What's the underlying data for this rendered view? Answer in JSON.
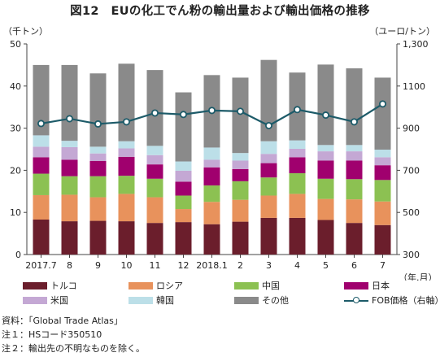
{
  "title": "図12　EUの化工でん粉の輸出量および輸出価格の推移",
  "left_unit": "（千トン）",
  "right_unit": "（ユーロ/トン）",
  "x_unit": "（年.月）",
  "notes": [
    "資料：「Global Trade Atlas」",
    "注１：HSコード350510",
    "注２：輸出先の不明なものを除く。"
  ],
  "chart_data": {
    "type": "bar",
    "stacked": true,
    "categories": [
      "2017.7",
      "8",
      "9",
      "10",
      "11",
      "12",
      "2018.1",
      "2",
      "3",
      "4",
      "5",
      "6",
      "7"
    ],
    "ylim": [
      0,
      50
    ],
    "yticks": [
      0,
      10,
      20,
      30,
      40,
      50
    ],
    "y2lim": [
      300,
      1300
    ],
    "y2ticks": [
      300,
      500,
      700,
      900,
      1100,
      "1,300"
    ],
    "series": [
      {
        "name": "トルコ",
        "color": "#6b1e2c",
        "values": [
          8.3,
          7.9,
          8.0,
          7.9,
          7.5,
          7.7,
          7.2,
          7.8,
          8.7,
          8.7,
          8.2,
          7.5,
          7.0
        ]
      },
      {
        "name": "ロシア",
        "color": "#e8925c",
        "values": [
          5.8,
          6.3,
          5.6,
          6.5,
          6.1,
          3.1,
          5.3,
          5.2,
          5.3,
          5.7,
          5.0,
          5.6,
          5.6
        ]
      },
      {
        "name": "中国",
        "color": "#8cc152",
        "values": [
          5.1,
          4.4,
          5.0,
          4.3,
          4.4,
          3.2,
          3.9,
          4.4,
          4.3,
          4.9,
          4.8,
          4.8,
          5.1
        ]
      },
      {
        "name": "日本",
        "color": "#a0006e",
        "values": [
          3.9,
          3.9,
          3.6,
          4.5,
          3.4,
          3.3,
          4.3,
          2.9,
          3.4,
          3.8,
          4.3,
          4.4,
          3.5
        ]
      },
      {
        "name": "米国",
        "color": "#c4a8d4",
        "values": [
          2.5,
          3.0,
          1.8,
          2.0,
          2.2,
          2.6,
          1.8,
          2.0,
          2.2,
          2.0,
          2.2,
          2.2,
          1.9
        ]
      },
      {
        "name": "韓国",
        "color": "#bcdfe8",
        "values": [
          2.7,
          1.5,
          1.6,
          1.7,
          2.2,
          2.2,
          2.9,
          1.8,
          3.0,
          2.0,
          1.5,
          1.5,
          1.8
        ]
      },
      {
        "name": "その他",
        "color": "#8a8a8a",
        "values": [
          16.7,
          18.0,
          17.4,
          18.4,
          18.0,
          16.4,
          17.2,
          17.9,
          19.3,
          16.1,
          19.1,
          18.2,
          17.1
        ]
      }
    ],
    "line_series": {
      "name": "FOB価格（右軸）",
      "color": "#1d5b69",
      "axis": "right",
      "values": [
        922,
        945,
        920,
        930,
        972,
        965,
        984,
        980,
        912,
        988,
        962,
        930,
        1015
      ]
    }
  }
}
